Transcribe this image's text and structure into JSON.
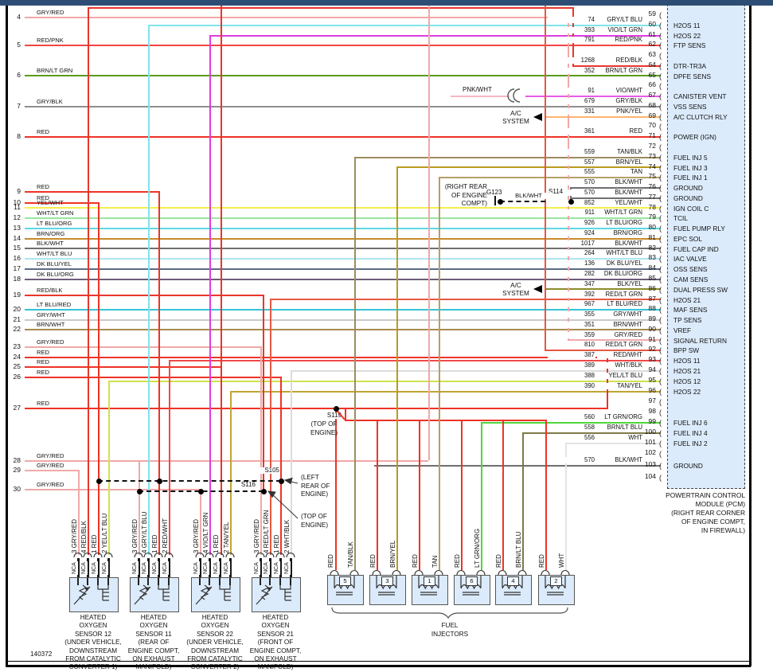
{
  "frame": {
    "page_number": "140372"
  },
  "colors": {
    "GRY/RED": "#f0a8a8",
    "RED": "#ee3326",
    "RED/PNK": "#f24542",
    "BRN/LT GRN": "#5c9a1d",
    "GRY/BLK": "#8f8f8f",
    "YEL/WHT": "#f4ef4d",
    "WHT/LT GRN": "#97e7a0",
    "LT BLU/ORG": "#5cd8e4",
    "BRN/ORG": "#c88b2a",
    "BLK/WHT": "#6f6f6f",
    "WHT/LT BLU": "#abe6f0",
    "DK BLU/YEL": "#5a6b88",
    "DK BLU/ORG": "#6e5c78",
    "RED/BLK": "#e8362c",
    "LT BLU/RED": "#35c4d9",
    "GRY/WHT": "#cacaca",
    "BRN/WHT": "#a78b4f",
    "GRY/LT BLU": "#80e4ec",
    "VIO/LT GRN": "#e03ce0",
    "VIO/WHT": "#ea5aea",
    "PNK/YEL": "#fdb56e",
    "PNK/WHT": "#f7b6c4",
    "TAN/BLK": "#9c8c5f",
    "BRN/YEL": "#b99b1f",
    "TAN": "#b59f67",
    "RED/LT GRN": "#e65843",
    "RED/WHT": "#f04848",
    "WHT/BLK": "#dbdbdb",
    "YEL/LT BLU": "#cfe24f",
    "TAN/YEL": "#c0a433",
    "LT GRN/ORG": "#4fd53b",
    "BRN/LT BLU": "#7d7a46",
    "WHT": "#e4e4e4",
    "BLK/YEL": "#8b8b2b",
    "BLACK": "#1a1a1a"
  },
  "left_pins": [
    {
      "pin": "4",
      "label": "GRY/RED"
    },
    {
      "pin": "5",
      "label": "RED/PNK"
    },
    {
      "pin": "6",
      "label": "BRN/LT GRN"
    },
    {
      "pin": "7",
      "label": "GRY/BLK"
    },
    {
      "pin": "8",
      "label": "RED"
    },
    {
      "pin": "9",
      "label": "RED"
    },
    {
      "pin": "10",
      "label": "RED"
    },
    {
      "pin": "11",
      "label": "YEL/WHT"
    },
    {
      "pin": "12",
      "label": "WHT/LT GRN"
    },
    {
      "pin": "13",
      "label": "LT BLU/ORG"
    },
    {
      "pin": "14",
      "label": "BRN/ORG"
    },
    {
      "pin": "15",
      "label": "BLK/WHT"
    },
    {
      "pin": "16",
      "label": "WHT/LT BLU"
    },
    {
      "pin": "17",
      "label": "DK BLU/YEL"
    },
    {
      "pin": "18",
      "label": "DK BLU/ORG"
    },
    {
      "pin": "19",
      "label": "RED/BLK"
    },
    {
      "pin": "20",
      "label": "LT BLU/RED"
    },
    {
      "pin": "21",
      "label": "GRY/WHT"
    },
    {
      "pin": "22",
      "label": "BRN/WHT"
    },
    {
      "pin": "23",
      "label": "GRY/RED"
    },
    {
      "pin": "24",
      "label": "RED"
    },
    {
      "pin": "25",
      "label": "RED"
    },
    {
      "pin": "26",
      "label": "RED"
    },
    {
      "pin": "27",
      "label": "RED"
    },
    {
      "pin": "28",
      "label": "GRY/RED"
    },
    {
      "pin": "29",
      "label": "GRY/RED"
    },
    {
      "pin": "30",
      "label": "GRY/RED"
    }
  ],
  "right_pins": [
    {
      "pin": "59"
    },
    {
      "pin": "60",
      "wire": "74",
      "color_label": "GRY/LT BLU",
      "function": "H2OS 11"
    },
    {
      "pin": "61",
      "wire": "393",
      "color_label": "VIO/LT GRN",
      "function": "H2OS 22"
    },
    {
      "pin": "62",
      "wire": "791",
      "color_label": "RED/PNK",
      "function": "FTP SENS"
    },
    {
      "pin": "63"
    },
    {
      "pin": "64",
      "wire": "1268",
      "color_label": "RED/BLK",
      "function": "DTR-TR3A"
    },
    {
      "pin": "65",
      "wire": "352",
      "color_label": "BRN/LT GRN",
      "function": "DPFE SENS"
    },
    {
      "pin": "66"
    },
    {
      "pin": "67",
      "wire": "91",
      "color_label": "VIO/WHT",
      "function": "CANISTER VENT"
    },
    {
      "pin": "68",
      "wire": "679",
      "color_label": "GRY/BLK",
      "function": "VSS SENS"
    },
    {
      "pin": "69",
      "wire": "331",
      "color_label": "PNK/YEL",
      "function": "A/C CLUTCH RLY"
    },
    {
      "pin": "70"
    },
    {
      "pin": "71",
      "wire": "361",
      "color_label": "RED",
      "function": "POWER (IGN)"
    },
    {
      "pin": "72"
    },
    {
      "pin": "73",
      "wire": "559",
      "color_label": "TAN/BLK",
      "function": "FUEL INJ 5"
    },
    {
      "pin": "74",
      "wire": "557",
      "color_label": "BRN/YEL",
      "function": "FUEL INJ 3"
    },
    {
      "pin": "75",
      "wire": "555",
      "color_label": "TAN",
      "function": "FUEL INJ 1"
    },
    {
      "pin": "76",
      "wire": "570",
      "color_label": "BLK/WHT",
      "function": "GROUND"
    },
    {
      "pin": "77",
      "wire": "570",
      "color_label": "BLK/WHT",
      "function": "GROUND"
    },
    {
      "pin": "78",
      "wire": "852",
      "color_label": "YEL/WHT",
      "function": "IGN COIL C"
    },
    {
      "pin": "79",
      "wire": "911",
      "color_label": "WHT/LT GRN",
      "function": "TCIL"
    },
    {
      "pin": "80",
      "wire": "926",
      "color_label": "LT BLU/ORG",
      "function": "FUEL PUMP RLY"
    },
    {
      "pin": "81",
      "wire": "924",
      "color_label": "BRN/ORG",
      "function": "EPC SOL"
    },
    {
      "pin": "82",
      "wire": "1017",
      "color_label": "BLK/WHT",
      "function": "FUEL CAP IND"
    },
    {
      "pin": "83",
      "wire": "264",
      "color_label": "WHT/LT BLU",
      "function": "IAC VALVE"
    },
    {
      "pin": "84",
      "wire": "136",
      "color_label": "DK BLU/YEL",
      "function": "OSS SENS"
    },
    {
      "pin": "85",
      "wire": "282",
      "color_label": "DK BLU/ORG",
      "function": "CAM SENS"
    },
    {
      "pin": "86",
      "wire": "347",
      "color_label": "BLK/YEL",
      "function": "DUAL PRESS SW"
    },
    {
      "pin": "87",
      "wire": "392",
      "color_label": "RED/LT GRN",
      "function": "H2OS 21"
    },
    {
      "pin": "88",
      "wire": "967",
      "color_label": "LT BLU/RED",
      "function": "MAF SENS"
    },
    {
      "pin": "89",
      "wire": "355",
      "color_label": "GRY/WHT",
      "function": "TP SENS"
    },
    {
      "pin": "90",
      "wire": "351",
      "color_label": "BRN/WHT",
      "function": "VREF"
    },
    {
      "pin": "91",
      "wire": "359",
      "color_label": "GRY/RED",
      "function": "SIGNAL RETURN"
    },
    {
      "pin": "92",
      "wire": "810",
      "color_label": "RED/LT GRN",
      "function": "BPP SW"
    },
    {
      "pin": "93",
      "wire": "387",
      "color_label": "RED/WHT",
      "function": "H2OS 11"
    },
    {
      "pin": "94",
      "wire": "389",
      "color_label": "WHT/BLK",
      "function": "H2OS 21"
    },
    {
      "pin": "95",
      "wire": "388",
      "color_label": "YEL/LT BLU",
      "function": "H2OS 12"
    },
    {
      "pin": "96",
      "wire": "390",
      "color_label": "TAN/YEL",
      "function": "H2OS 22"
    },
    {
      "pin": "97"
    },
    {
      "pin": "98"
    },
    {
      "pin": "99",
      "wire": "560",
      "color_label": "LT GRN/ORG",
      "function": "FUEL INJ 6"
    },
    {
      "pin": "100",
      "wire": "558",
      "color_label": "BRN/LT BLU",
      "function": "FUEL INJ 4"
    },
    {
      "pin": "101",
      "wire": "556",
      "color_label": "WHT",
      "function": "FUEL INJ 2"
    },
    {
      "pin": "102"
    },
    {
      "pin": "103",
      "wire": "570",
      "color_label": "BLK/WHT",
      "function": "GROUND"
    },
    {
      "pin": "104"
    }
  ],
  "pcm": {
    "caption": [
      "POWERTRAIN CONTROL",
      "MODULE (PCM)",
      "(RIGHT REAR CORNER",
      "OF ENGINE COMPT,",
      "IN FIREWALL)"
    ]
  },
  "sensors": [
    {
      "wires": [
        {
          "text": "3 GRY/RED",
          "color": "GRY/RED"
        },
        {
          "text": "4 RED/BLK",
          "color": "RED/BLK"
        },
        {
          "text": "1 RED",
          "color": "RED"
        },
        {
          "text": "2 YEL/LT BLU",
          "color": "YEL/LT BLU"
        }
      ],
      "caption": [
        "HEATED",
        "OXYGEN",
        "SENSOR 12",
        "(UNDER VEHICLE,",
        "DOWNSTREAM",
        "FROM CATALYTIC",
        "CONVERTER 1)"
      ]
    },
    {
      "wires": [
        {
          "text": "3 GRY/RED",
          "color": "GRY/RED"
        },
        {
          "text": "4 GRY/LT BLU",
          "color": "GRY/LT BLU"
        },
        {
          "text": "1 RED",
          "color": "RED"
        },
        {
          "text": "2 RED/WHT",
          "color": "RED/WHT"
        }
      ],
      "caption": [
        "HEATED",
        "OXYGEN",
        "SENSOR 11",
        "(REAR OF",
        "ENGINE COMPT,",
        "ON EXHAUST",
        "MANIFOLD)"
      ]
    },
    {
      "wires": [
        {
          "text": "3 GRY/RED",
          "color": "GRY/RED"
        },
        {
          "text": "4 VIO/LT GRN",
          "color": "VIO/LT GRN"
        },
        {
          "text": "1 RED",
          "color": "RED"
        },
        {
          "text": "2 TAN/YEL",
          "color": "TAN/YEL"
        }
      ],
      "caption": [
        "HEATED",
        "OXYGEN",
        "SENSOR 22",
        "(UNDER VEHICLE,",
        "DOWNSTREAM",
        "FROM CATALYTIC",
        "CONVERTER 2)"
      ]
    },
    {
      "wires": [
        {
          "text": "3 GRY/RED",
          "color": "GRY/RED"
        },
        {
          "text": "4 RED/LT GRN",
          "color": "RED/LT GRN"
        },
        {
          "text": "1 RED",
          "color": "RED"
        },
        {
          "text": "2 WHT/BLK",
          "color": "WHT/BLK"
        }
      ],
      "caption": [
        "HEATED",
        "OXYGEN",
        "SENSOR 21",
        "(FRONT OF",
        "ENGINE COMPT,",
        "ON EXHAUST",
        "MANIFOLD)"
      ]
    }
  ],
  "labels": {
    "nca": "NCA"
  },
  "injectors": [
    {
      "num": "5",
      "wires": [
        {
          "text": "RED",
          "color": "RED"
        },
        {
          "text": "TAN/BLK",
          "color": "TAN/BLK"
        }
      ]
    },
    {
      "num": "3",
      "wires": [
        {
          "text": "RED",
          "color": "RED"
        },
        {
          "text": "BRN/YEL",
          "color": "BRN/YEL"
        }
      ]
    },
    {
      "num": "1",
      "wires": [
        {
          "text": "RED",
          "color": "RED"
        },
        {
          "text": "TAN",
          "color": "TAN"
        }
      ]
    },
    {
      "num": "6",
      "wires": [
        {
          "text": "RED",
          "color": "RED"
        },
        {
          "text": "LT GRN/ORG",
          "color": "LT GRN/ORG"
        }
      ]
    },
    {
      "num": "4",
      "wires": [
        {
          "text": "RED",
          "color": "RED"
        },
        {
          "text": "BRN/LT BLU",
          "color": "BRN/LT BLU"
        }
      ]
    },
    {
      "num": "2",
      "wires": [
        {
          "text": "RED",
          "color": "RED"
        },
        {
          "text": "WHT",
          "color": "WHT"
        }
      ]
    }
  ],
  "injectors_caption": [
    "FUEL",
    "INJECTORS"
  ],
  "annotations": {
    "s105": "S105",
    "s105_loc": [
      "(LEFT",
      "REAR OF",
      "ENGINE)"
    ],
    "s116": "S116",
    "s116_loc": [
      "(TOP OF",
      "ENGINE)"
    ],
    "s119": "S119",
    "s119_loc": [
      "(TOP OF",
      "ENGINE)"
    ],
    "s114": "S114",
    "g123": "G123",
    "g123_wire": "BLK/WHT",
    "g123_loc": [
      "(RIGHT REAR",
      "OF ENGINE",
      "COMPT)"
    ],
    "pnk_wht": "PNK/WHT",
    "ac1": [
      "A/C",
      "SYSTEM"
    ],
    "ac2": [
      "A/C",
      "SYSTEM"
    ]
  }
}
